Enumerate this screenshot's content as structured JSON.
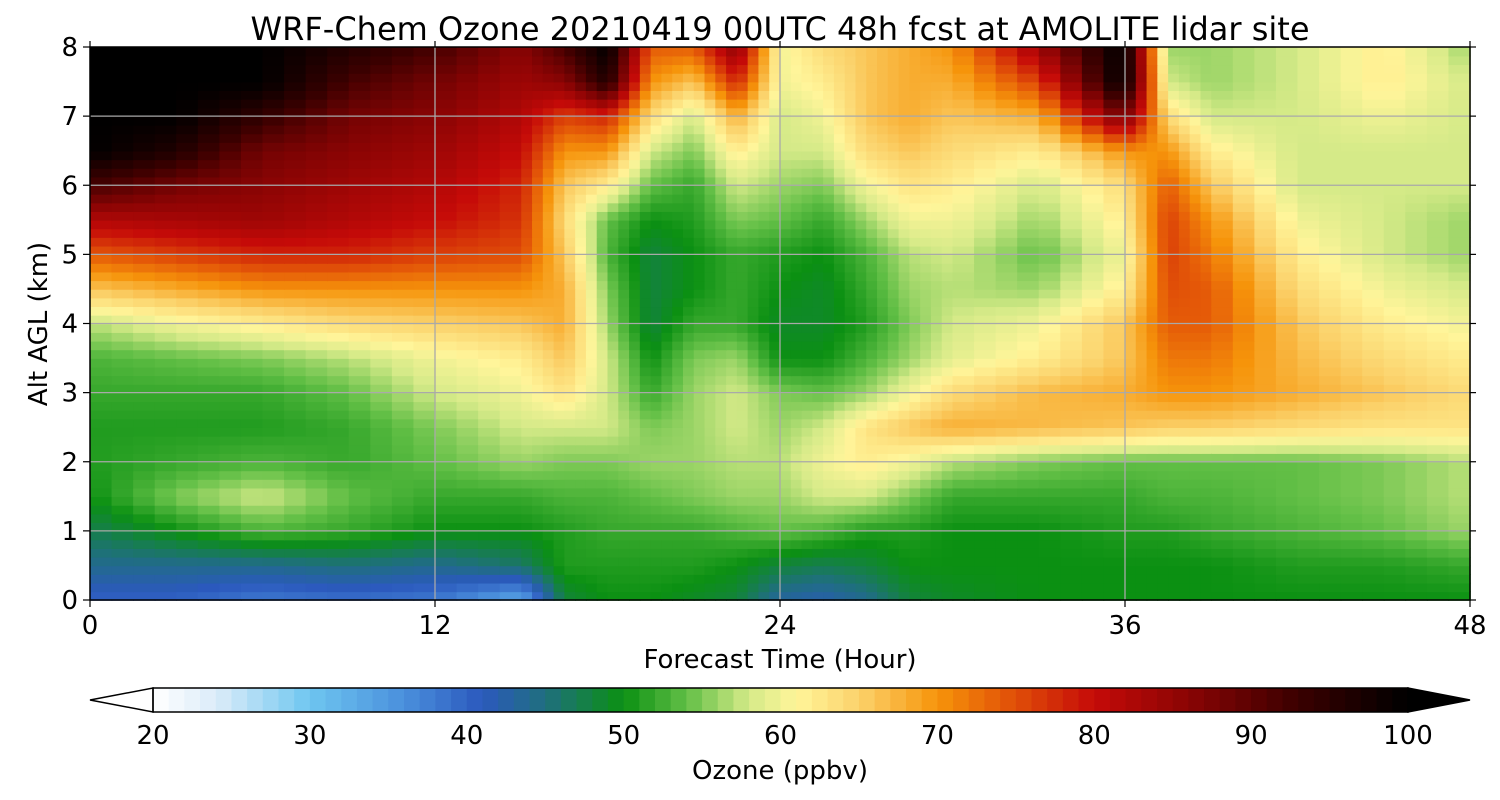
{
  "chart_data": {
    "type": "heatmap",
    "title": "WRF-Chem Ozone  20210419 00UTC 48h fcst at AMOLITE lidar site",
    "xlabel": "Forecast Time (Hour)",
    "ylabel": "Alt AGL (km)",
    "xlim": [
      0,
      48
    ],
    "ylim": [
      0,
      8
    ],
    "xticks": [
      "0",
      "12",
      "24",
      "36",
      "48"
    ],
    "yticks": [
      "0",
      "1",
      "2",
      "3",
      "4",
      "5",
      "6",
      "7",
      "8"
    ],
    "grid": true,
    "x": [
      0,
      3,
      6,
      9,
      12,
      15,
      16.5,
      18,
      19.5,
      21,
      22.5,
      24,
      25.5,
      27,
      28.5,
      30,
      33,
      36,
      37.5,
      39,
      42,
      45,
      48
    ],
    "y": [
      0,
      0.5,
      1,
      1.5,
      2,
      2.5,
      3,
      3.5,
      4,
      4.5,
      5,
      5.5,
      6,
      6.5,
      7,
      7.5,
      8
    ],
    "z": [
      [
        40,
        40,
        38,
        39,
        38,
        33,
        48,
        50,
        50,
        49,
        48,
        43,
        42,
        44,
        48,
        49,
        50,
        50,
        50,
        50,
        50,
        50,
        50
      ],
      [
        44,
        44,
        44,
        45,
        44,
        46,
        51,
        51,
        51,
        51,
        50,
        48,
        47,
        48,
        50,
        50,
        50,
        50,
        50,
        50,
        51,
        51,
        52
      ],
      [
        47,
        50,
        53,
        52,
        50,
        50,
        51,
        52,
        52,
        52,
        53,
        54,
        53,
        51,
        51,
        50,
        50,
        51,
        51,
        52,
        53,
        54,
        56
      ],
      [
        50,
        55,
        58,
        54,
        52,
        52,
        53,
        53,
        54,
        55,
        56,
        56,
        58,
        58,
        55,
        52,
        52,
        52,
        53,
        53,
        54,
        55,
        57
      ],
      [
        51,
        52,
        53,
        52,
        54,
        56,
        55,
        55,
        56,
        56,
        57,
        57,
        60,
        62,
        60,
        57,
        55,
        54,
        54,
        54,
        54,
        55,
        57
      ],
      [
        51,
        51,
        51,
        52,
        55,
        58,
        58,
        58,
        55,
        56,
        58,
        56,
        58,
        63,
        66,
        68,
        67,
        66,
        65,
        65,
        64,
        63,
        63
      ],
      [
        52,
        52,
        52,
        54,
        58,
        60,
        63,
        58,
        52,
        56,
        58,
        55,
        54,
        56,
        60,
        64,
        67,
        68,
        70,
        70,
        68,
        66,
        64
      ],
      [
        53,
        54,
        55,
        57,
        60,
        62,
        66,
        58,
        50,
        55,
        56,
        50,
        50,
        53,
        56,
        59,
        62,
        66,
        72,
        72,
        67,
        64,
        62
      ],
      [
        57,
        60,
        62,
        64,
        65,
        66,
        68,
        56,
        48,
        52,
        52,
        49,
        49,
        51,
        55,
        58,
        60,
        66,
        74,
        74,
        66,
        62,
        60
      ],
      [
        66,
        68,
        70,
        70,
        70,
        70,
        68,
        55,
        48,
        50,
        52,
        50,
        49,
        52,
        56,
        57,
        56,
        62,
        75,
        74,
        64,
        60,
        58
      ],
      [
        74,
        76,
        78,
        78,
        76,
        75,
        66,
        53,
        48,
        50,
        52,
        51,
        50,
        53,
        57,
        58,
        54,
        60,
        76,
        72,
        62,
        58,
        56
      ],
      [
        82,
        83,
        84,
        82,
        80,
        77,
        64,
        54,
        50,
        51,
        55,
        54,
        52,
        56,
        60,
        60,
        56,
        62,
        76,
        70,
        60,
        58,
        56
      ],
      [
        92,
        88,
        86,
        84,
        82,
        78,
        66,
        62,
        54,
        52,
        58,
        56,
        55,
        60,
        63,
        62,
        58,
        64,
        74,
        66,
        58,
        58,
        58
      ],
      [
        100,
        96,
        88,
        86,
        84,
        80,
        70,
        70,
        58,
        55,
        62,
        58,
        58,
        64,
        66,
        64,
        62,
        70,
        70,
        62,
        58,
        58,
        58
      ],
      [
        100,
        100,
        94,
        88,
        86,
        82,
        76,
        78,
        64,
        58,
        68,
        58,
        60,
        66,
        68,
        66,
        68,
        88,
        64,
        58,
        58,
        60,
        58
      ],
      [
        100,
        100,
        100,
        92,
        88,
        84,
        86,
        96,
        70,
        66,
        78,
        60,
        62,
        66,
        68,
        68,
        76,
        100,
        58,
        56,
        58,
        62,
        58
      ],
      [
        100,
        100,
        100,
        96,
        92,
        86,
        92,
        100,
        74,
        74,
        86,
        60,
        64,
        66,
        68,
        70,
        84,
        100,
        56,
        56,
        58,
        62,
        56
      ]
    ],
    "colorbar": {
      "label": "Ozone  (ppbv)",
      "ticks": [
        "20",
        "30",
        "40",
        "50",
        "60",
        "70",
        "80",
        "90",
        "100"
      ],
      "min": 20,
      "max": 100,
      "extend": "both",
      "stops": [
        {
          "v": 20,
          "c": "#ffffff"
        },
        {
          "v": 24,
          "c": "#dcecf9"
        },
        {
          "v": 30,
          "c": "#6ec6f0"
        },
        {
          "v": 36,
          "c": "#4a8fdc"
        },
        {
          "v": 41,
          "c": "#2b59bd"
        },
        {
          "v": 45,
          "c": "#1f6f7e"
        },
        {
          "v": 50,
          "c": "#0b9012"
        },
        {
          "v": 54,
          "c": "#62bf46"
        },
        {
          "v": 58,
          "c": "#d5ea88"
        },
        {
          "v": 61,
          "c": "#fff59a"
        },
        {
          "v": 65,
          "c": "#fbd26b"
        },
        {
          "v": 70,
          "c": "#f6940a"
        },
        {
          "v": 74,
          "c": "#e55b08"
        },
        {
          "v": 80,
          "c": "#c50a08"
        },
        {
          "v": 86,
          "c": "#8a0404"
        },
        {
          "v": 93,
          "c": "#3a0000"
        },
        {
          "v": 100,
          "c": "#000000"
        }
      ]
    }
  }
}
